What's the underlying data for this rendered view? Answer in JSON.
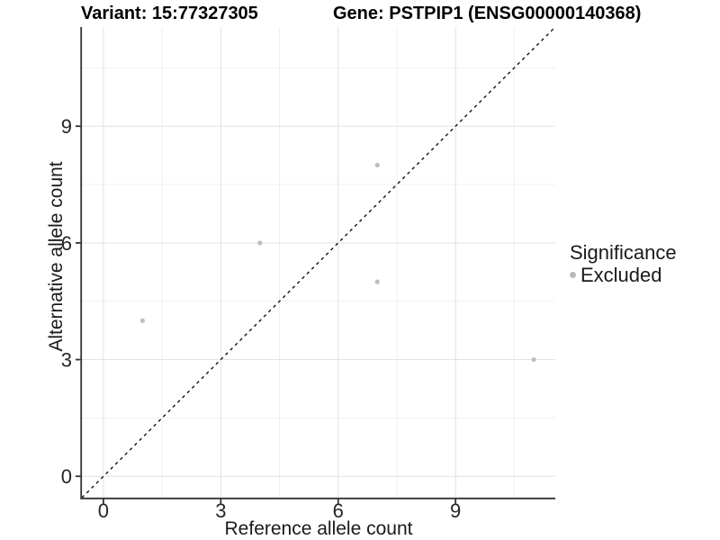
{
  "titles": {
    "variant": "Variant: 15:77327305",
    "gene": "Gene: PSTPIP1 (ENSG00000140368)"
  },
  "chart_data": {
    "type": "scatter",
    "title_left": "Variant: 15:77327305",
    "title_right": "Gene: PSTPIP1 (ENSG00000140368)",
    "xlabel": "Reference allele count",
    "ylabel": "Alternative allele count",
    "x_ticks": [
      0,
      3,
      6,
      9
    ],
    "y_ticks": [
      0,
      3,
      6,
      9
    ],
    "x_minor_ticks": [
      1.5,
      4.5,
      7.5,
      10.5
    ],
    "y_minor_ticks": [
      1.5,
      4.5,
      7.5,
      10.5
    ],
    "xlim": [
      -0.55,
      11.55
    ],
    "ylim": [
      -0.55,
      11.55
    ],
    "grid": true,
    "reference_line": "y = x dashed identity line, corner to corner",
    "series": [
      {
        "name": "Excluded",
        "points": [
          {
            "x": 1,
            "y": 4
          },
          {
            "x": 4,
            "y": 6
          },
          {
            "x": 7,
            "y": 8
          },
          {
            "x": 7,
            "y": 5
          },
          {
            "x": 11,
            "y": 3
          }
        ]
      }
    ],
    "legend": {
      "position": "right",
      "title": "Significance",
      "items": [
        {
          "label": "Excluded",
          "color": "#b9b9b9"
        }
      ]
    },
    "colors": {
      "point": "#bdbdbd",
      "identity_line": "#111111",
      "axis_line": "#333333",
      "tick_label": "#262626",
      "grid_major": "#e2e2e2",
      "grid_minor": "#f0f0f0",
      "background": "#ffffff"
    }
  }
}
